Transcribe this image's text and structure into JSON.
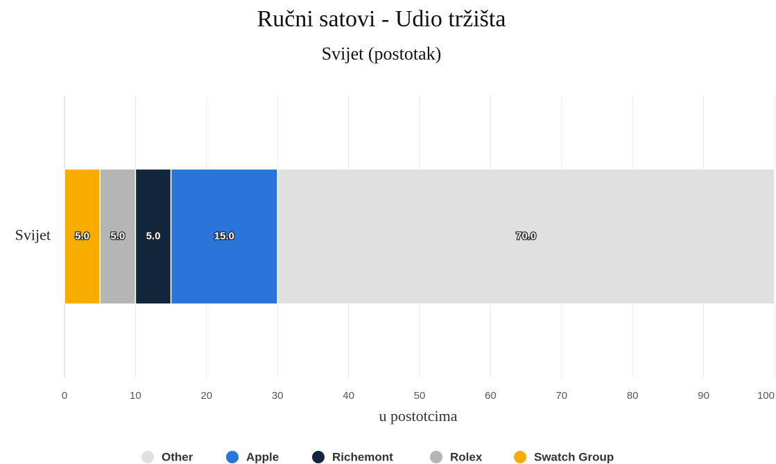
{
  "chart_data": {
    "type": "stacked_bar_horizontal",
    "title": "Ručni satovi  -  Udio tržišta",
    "subtitle": "Svijet (postotak)",
    "categories": [
      "Svijet"
    ],
    "series": [
      {
        "name": "Other",
        "color": "#e0e0e0",
        "values": [
          70
        ],
        "value_labels": [
          "70.0"
        ]
      },
      {
        "name": "Apple",
        "color": "#2a75d9",
        "values": [
          15
        ],
        "value_labels": [
          "15.0"
        ]
      },
      {
        "name": "Richemont",
        "color": "#12263b",
        "values": [
          5
        ],
        "value_labels": [
          "5.0"
        ]
      },
      {
        "name": "Rolex",
        "color": "#b5b5b5",
        "values": [
          5
        ],
        "value_labels": [
          "5.0"
        ]
      },
      {
        "name": "Swatch Group",
        "color": "#f9ac00",
        "values": [
          5
        ],
        "value_labels": [
          "5.0"
        ]
      }
    ],
    "xlabel": "u postotcima",
    "xlim": [
      0,
      100
    ],
    "xticks": [
      0,
      10,
      20,
      30,
      40,
      50,
      60,
      70,
      80,
      90,
      100
    ],
    "grid": true
  }
}
